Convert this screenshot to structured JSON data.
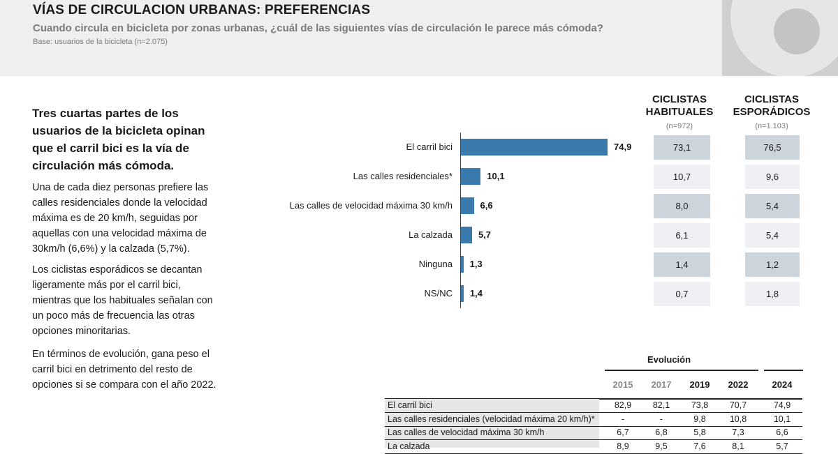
{
  "header": {
    "title": "VÍAS DE CIRCULACION URBANAS: PREFERENCIAS",
    "subtitle": "Cuando circula en bicicleta por zonas urbanas, ¿cuál de las siguientes vías de circulación le parece más cómoda?",
    "base": "Base: usuarios de la bicicleta (n=2.075)"
  },
  "left": {
    "intro": "Tres cuartas partes de los usuarios de la bicicleta opinan que el carril bici es la vía de circulación más cómoda.",
    "p1": "Una de cada diez personas prefiere las calles residenciales donde la velocidad máxima es de 20 km/h, seguidas por aquellas con una velocidad máxima de 30km/h (6,6%) y la calzada (5,7%).",
    "p2": "Los ciclistas esporádicos se decantan ligeramente más por el carril bici, mientras que los habituales señalan con un poco más de frecuencia las otras opciones minoritarias.",
    "p3": "En términos de evolución, gana peso el carril bici en detrimento del resto de opciones si se compara con el año 2022."
  },
  "columns": {
    "habituales": {
      "line1": "CICLISTAS",
      "line2": "HABITUALES",
      "n": "(n=972)"
    },
    "esporadicos": {
      "line1": "CICLISTAS",
      "line2": "ESPORÁDICOS",
      "n": "(n=1.103)"
    }
  },
  "chart_data": {
    "type": "bar",
    "orientation": "horizontal",
    "categories": [
      "El carril bici",
      "Las calles residenciales*",
      "Las calles de velocidad máxima 30 km/h",
      "La calzada",
      "Ninguna",
      "NS/NC"
    ],
    "values": [
      74.9,
      10.1,
      6.6,
      5.7,
      1.3,
      1.4
    ],
    "value_labels": [
      "74,9",
      "10,1",
      "6,6",
      "5,7",
      "1,3",
      "1,4"
    ],
    "bar_color": "#3a7aad",
    "xlim": [
      0,
      100
    ],
    "habituales": [
      "73,1",
      "10,7",
      "8,0",
      "6,1",
      "1,4",
      "0,7"
    ],
    "esporadicos": [
      "76,5",
      "9,6",
      "5,4",
      "5,4",
      "1,2",
      "1,8"
    ]
  },
  "evolution": {
    "title": "Evolución",
    "years": [
      "2015",
      "2017",
      "2019",
      "2022",
      "2024"
    ],
    "rows": [
      {
        "label": "El carril bici",
        "values": [
          "82,9",
          "82,1",
          "73,8",
          "70,7",
          "74,9"
        ]
      },
      {
        "label": "Las calles residenciales (velocidad máxima 20 km/h)*",
        "values": [
          "-",
          "-",
          "9,8",
          "10,8",
          "10,1"
        ]
      },
      {
        "label": "Las calles de velocidad máxima 30 km/h",
        "values": [
          "6,7",
          "6,8",
          "5,8",
          "7,3",
          "6,6"
        ]
      },
      {
        "label": "La calzada",
        "values": [
          "8,9",
          "9,5",
          "7,6",
          "8,1",
          "5,7"
        ]
      }
    ]
  }
}
